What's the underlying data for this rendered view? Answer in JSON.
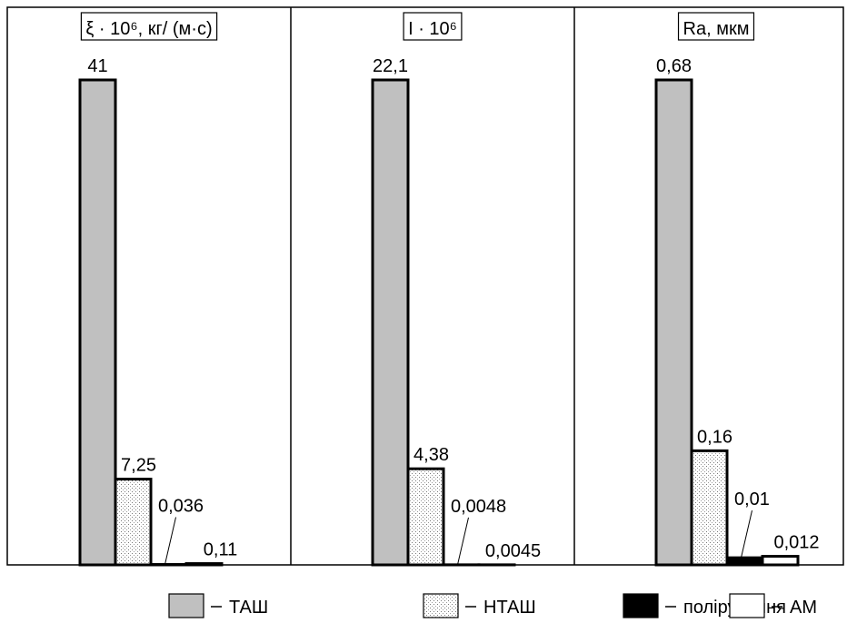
{
  "chart_data": [
    {
      "type": "bar",
      "title": "ξ · 10⁶, кг/ (м·с)",
      "series": [
        {
          "name": "ТАШ",
          "color": "#c0c0c0",
          "values": [
            41
          ]
        },
        {
          "name": "НТАШ",
          "color": "dots",
          "values": [
            7.25
          ],
          "value_labels": [
            "7,25"
          ]
        },
        {
          "name": "полірування",
          "color": "#000000",
          "values": [
            0.036
          ],
          "value_labels": [
            "0,036"
          ]
        },
        {
          "name": "АМ",
          "color": "#ffffff",
          "values": [
            0.11
          ],
          "value_labels": [
            "0,11"
          ]
        }
      ]
    },
    {
      "type": "bar",
      "title": "I · 10⁶",
      "series": [
        {
          "name": "ТАШ",
          "color": "#c0c0c0",
          "values": [
            22.1
          ],
          "value_labels": [
            "22,1"
          ]
        },
        {
          "name": "НТАШ",
          "color": "dots",
          "values": [
            4.38
          ],
          "value_labels": [
            "4,38"
          ]
        },
        {
          "name": "полірування",
          "color": "#000000",
          "values": [
            0.0048
          ],
          "value_labels": [
            "0,0048"
          ]
        },
        {
          "name": "АМ",
          "color": "#ffffff",
          "values": [
            0.0045
          ],
          "value_labels": [
            "0,0045"
          ]
        }
      ]
    },
    {
      "type": "bar",
      "title": "Ra, мкм",
      "series": [
        {
          "name": "ТАШ",
          "color": "#c0c0c0",
          "values": [
            0.68
          ],
          "value_labels": [
            "0,68"
          ]
        },
        {
          "name": "НТАШ",
          "color": "dots",
          "values": [
            0.16
          ],
          "value_labels": [
            "0,16"
          ]
        },
        {
          "name": "полірування",
          "color": "#000000",
          "values": [
            0.01
          ],
          "value_labels": [
            "0,01"
          ]
        },
        {
          "name": "АМ",
          "color": "#ffffff",
          "values": [
            0.012
          ],
          "value_labels": [
            "0,012"
          ]
        }
      ]
    }
  ]
}
